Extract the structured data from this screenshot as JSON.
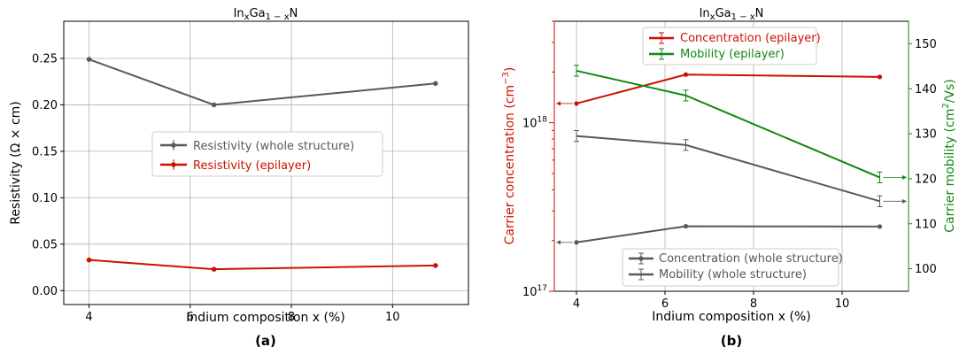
{
  "chart_data": [
    {
      "panel_label": "(a)",
      "type": "line",
      "title": "In_xGa_{1-x}N",
      "title_parts": {
        "a": "In",
        "b": "x",
        "c": "Ga",
        "d": "1 − x",
        "e": "N"
      },
      "xlabel": "Indium composition x (%)",
      "ylabel": "Resistivity (Ω × cm)",
      "xlim": [
        3.5,
        11.5
      ],
      "ylim": [
        -0.015,
        0.29
      ],
      "xticks": [
        4,
        6,
        8,
        10
      ],
      "yticks": [
        0.0,
        0.05,
        0.1,
        0.15,
        0.2,
        0.25
      ],
      "ytick_labels": [
        "0.00",
        "0.05",
        "0.10",
        "0.15",
        "0.20",
        "0.25"
      ],
      "grid": true,
      "legend_position": "center",
      "series": [
        {
          "name": "Resistivity (whole structure)",
          "color": "#595959",
          "x": [
            4.0,
            6.47,
            10.85
          ],
          "y": [
            0.249,
            0.2,
            0.223
          ]
        },
        {
          "name": "Resistivity (epilayer)",
          "color": "#cc1100",
          "x": [
            4.0,
            6.47,
            10.85
          ],
          "y": [
            0.033,
            0.023,
            0.027
          ]
        }
      ]
    },
    {
      "panel_label": "(b)",
      "type": "line",
      "title": "In_xGa_{1-x}N",
      "title_parts": {
        "a": "In",
        "b": "x",
        "c": "Ga",
        "d": "1 − x",
        "e": "N"
      },
      "xlabel": "Indium composition x (%)",
      "ylabel_left": "Carrier concentration (cm⁻³)",
      "ylabel_left_parts": {
        "main": "Carrier concentration (cm",
        "sup": "−3",
        "end": ")"
      },
      "ylabel_right": "Carrier mobility (cm²/Vs)",
      "ylabel_right_parts": {
        "main": "Carrier mobility (cm",
        "sup": "2",
        "end": "/Vs)"
      },
      "xlim": [
        3.5,
        11.5
      ],
      "ylim_left": [
        1e+17,
        4e+18
      ],
      "yscale_left": "log",
      "ylim_right": [
        95,
        155
      ],
      "xticks": [
        4,
        6,
        8,
        10
      ],
      "yticks_right": [
        100,
        110,
        120,
        130,
        140,
        150
      ],
      "yticks_left_labels": [
        {
          "value": 1e+17,
          "base": "10",
          "exp": "17"
        },
        {
          "value": 1e+18,
          "base": "10",
          "exp": "18"
        }
      ],
      "grid": true,
      "legend_top": "top-center",
      "legend_bottom": "bottom-center",
      "series": [
        {
          "name": "Concentration (epilayer)",
          "axis": "left",
          "color": "#cc1100",
          "x": [
            4.0,
            6.47,
            10.85
          ],
          "y": [
            1.3e+18,
            1.93e+18,
            1.87e+18
          ],
          "marker": "dot"
        },
        {
          "name": "Mobility (epilayer)",
          "axis": "right",
          "color": "#118811",
          "x": [
            4.0,
            6.47,
            10.85
          ],
          "y": [
            144.0,
            138.5,
            120.3
          ],
          "err": [
            1.2,
            1.2,
            1.2
          ],
          "marker": "cap"
        },
        {
          "name": "Concentration (whole structure)",
          "axis": "left",
          "color": "#595959",
          "x": [
            4.0,
            6.47,
            10.85
          ],
          "y": [
            1.95e+17,
            2.43e+17,
            2.42e+17
          ],
          "marker": "dot"
        },
        {
          "name": "Mobility (whole structure)",
          "axis": "right",
          "color": "#595959",
          "x": [
            4.0,
            6.47,
            10.85
          ],
          "y": [
            129.5,
            127.5,
            115.0
          ],
          "err": [
            1.2,
            1.2,
            1.2
          ],
          "marker": "cap"
        }
      ]
    }
  ]
}
